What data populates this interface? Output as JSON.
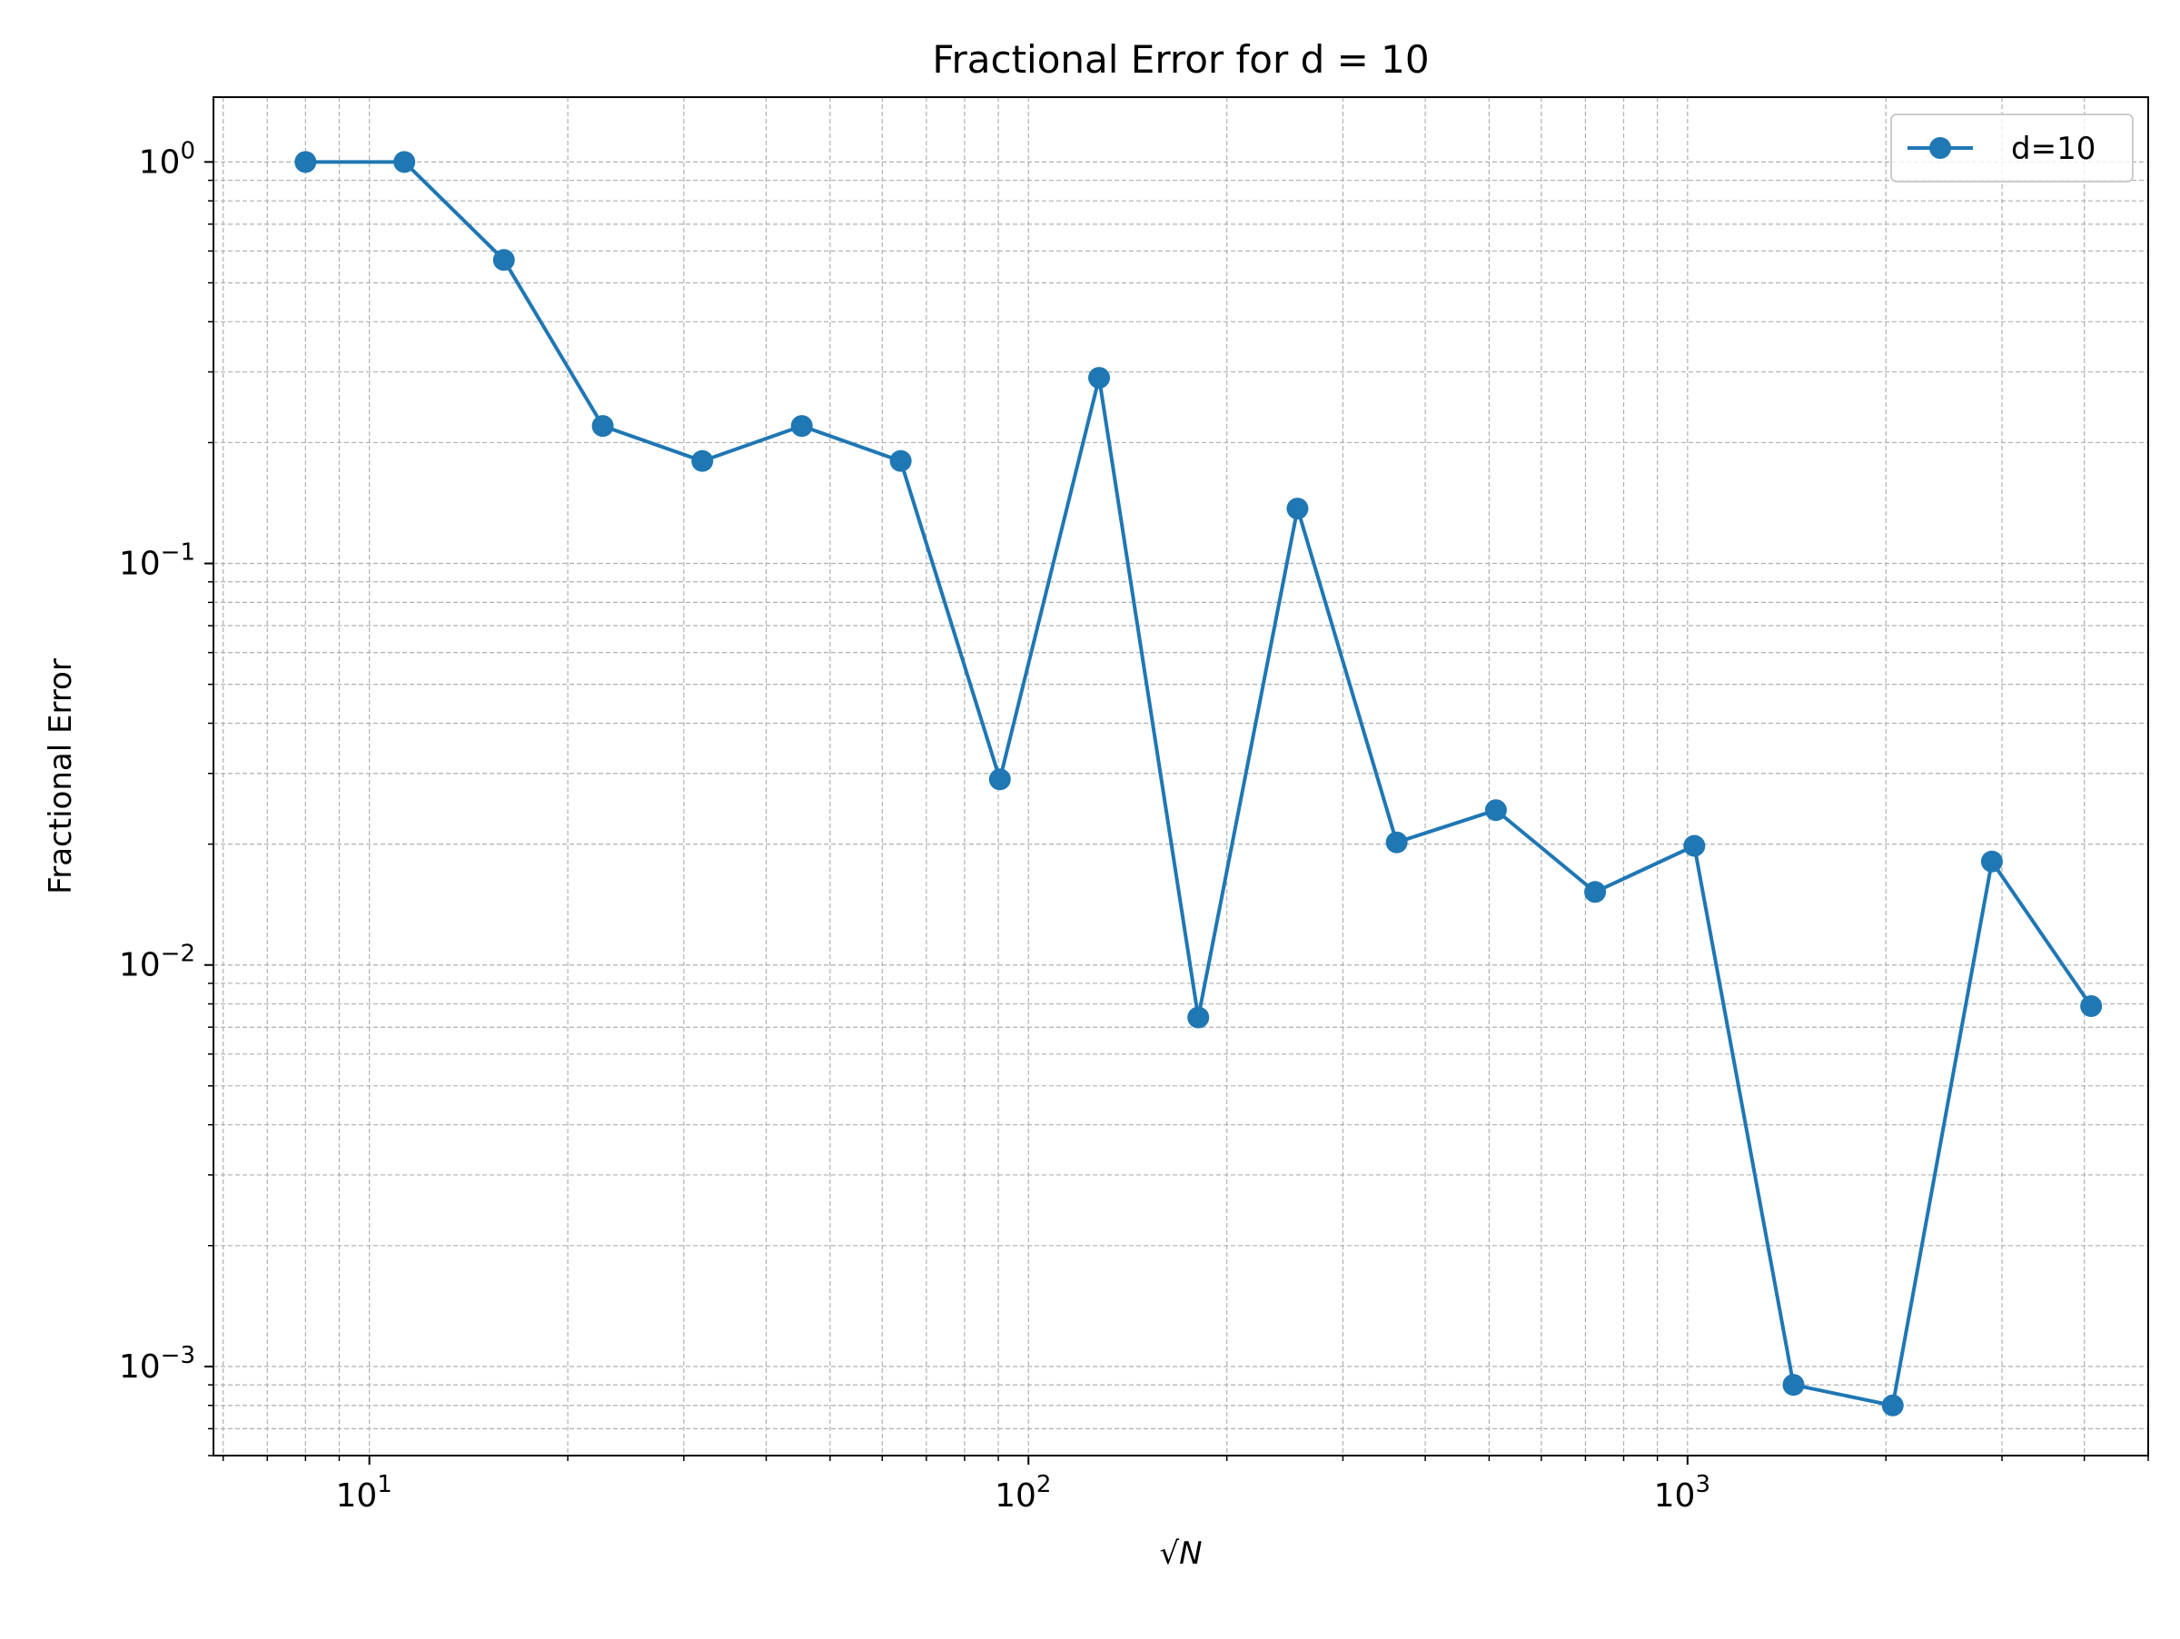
{
  "chart_data": {
    "type": "line",
    "title": "Fractional Error for d = 10",
    "xlabel": "√N",
    "ylabel": "Fractional Error",
    "xscale": "log",
    "yscale": "log",
    "xlim": [
      5.8,
      5000
    ],
    "ylim": [
      0.0006,
      1.45
    ],
    "grid": true,
    "grid_minor": true,
    "legend_position": "top-right",
    "series": [
      {
        "name": "d=10",
        "color": "#1f77b4",
        "marker": "circle",
        "x": [
          8,
          11.3,
          16,
          22.6,
          32,
          45.3,
          64,
          90.5,
          128,
          181,
          256,
          362,
          512,
          724,
          1024,
          1448,
          2048,
          2896,
          4096
        ],
        "y": [
          1.0,
          1.0,
          0.57,
          0.22,
          0.18,
          0.22,
          0.18,
          0.029,
          0.29,
          0.0074,
          0.137,
          0.0202,
          0.0243,
          0.0152,
          0.0198,
          0.0009,
          0.0008,
          0.0181,
          0.0079
        ]
      }
    ],
    "x_ticks": [
      {
        "value": 10,
        "base": "10",
        "exp": "1"
      },
      {
        "value": 100,
        "base": "10",
        "exp": "2"
      },
      {
        "value": 1000,
        "base": "10",
        "exp": "3"
      }
    ],
    "y_ticks": [
      {
        "value": 1,
        "base": "10",
        "exp": "0"
      },
      {
        "value": 0.1,
        "base": "10",
        "exp": "−1"
      },
      {
        "value": 0.01,
        "base": "10",
        "exp": "−2"
      },
      {
        "value": 0.001,
        "base": "10",
        "exp": "−3"
      }
    ]
  }
}
